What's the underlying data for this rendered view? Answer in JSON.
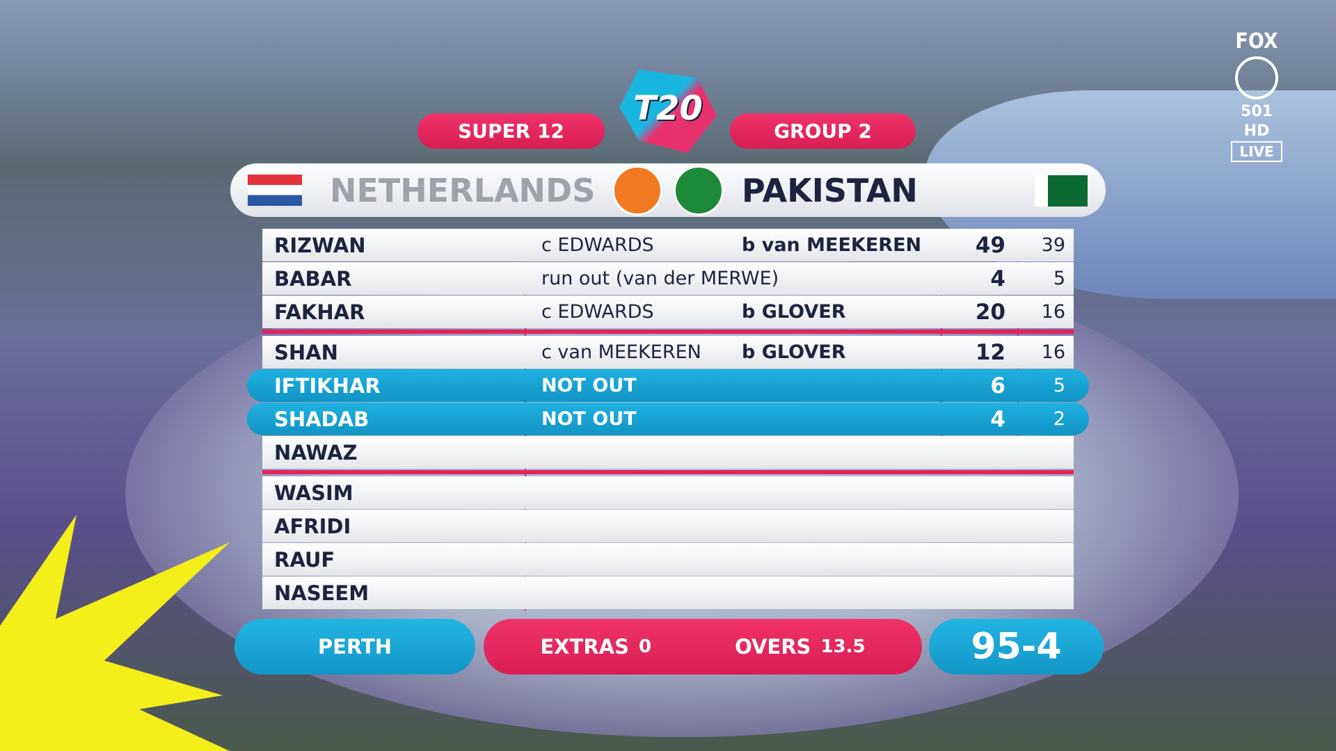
{
  "channel": {
    "brand": "FOX",
    "channel": "501 HD",
    "status": "LIVE"
  },
  "header": {
    "logo": "T20",
    "stage": "SUPER 12",
    "group": "GROUP 2"
  },
  "teams": {
    "bowling": "NETHERLANDS",
    "batting": "PAKISTAN"
  },
  "batting": [
    {
      "name": "RIZWAN",
      "dismissal": "c EDWARDS",
      "bowler": "b van MEEKEREN",
      "runs": 49,
      "balls": 39
    },
    {
      "name": "BABAR",
      "dismissal": "run out (van der MERWE)",
      "runs": 4,
      "balls": 5
    },
    {
      "name": "FAKHAR",
      "dismissal": "c EDWARDS",
      "bowler": "b GLOVER",
      "runs": 20,
      "balls": 16
    },
    {
      "name": "SHAN",
      "dismissal": "c van MEEKEREN",
      "bowler": "b GLOVER",
      "runs": 12,
      "balls": 16
    },
    {
      "name": "IFTIKHAR",
      "dismissal": "NOT OUT",
      "runs": 6,
      "balls": 5,
      "highlight": true
    },
    {
      "name": "SHADAB",
      "dismissal": "NOT OUT",
      "runs": 4,
      "balls": 2,
      "highlight": true
    },
    {
      "name": "NAWAZ"
    },
    {
      "name": "WASIM"
    },
    {
      "name": "AFRIDI"
    },
    {
      "name": "RAUF"
    },
    {
      "name": "NASEEM"
    }
  ],
  "footer": {
    "venue": "PERTH",
    "extras_label": "EXTRAS",
    "extras": 0,
    "overs_label": "OVERS",
    "overs": 13.5,
    "score": "95-4"
  }
}
